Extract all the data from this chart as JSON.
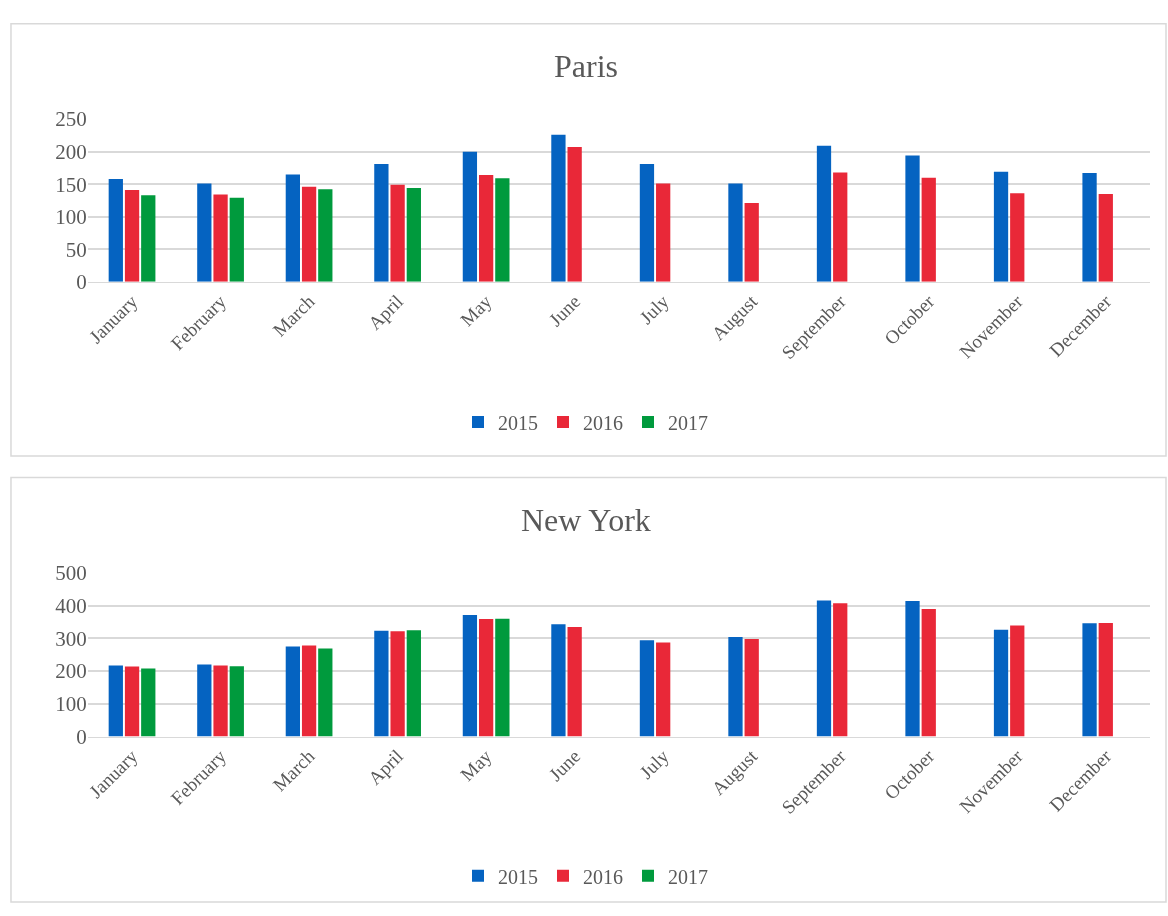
{
  "chart_data": [
    {
      "type": "bar",
      "title": "Paris",
      "categories": [
        "January",
        "February",
        "March",
        "April",
        "May",
        "June",
        "July",
        "August",
        "September",
        "October",
        "November",
        "December"
      ],
      "ylim": [
        0,
        250
      ],
      "yticks": [
        0,
        50,
        100,
        150,
        200,
        250
      ],
      "grid": "y",
      "legend": "bottom",
      "series": [
        {
          "name": "2015",
          "color": "#0563c1",
          "values": [
            158,
            151,
            165,
            181,
            200,
            226,
            181,
            151,
            209,
            194,
            169,
            167
          ]
        },
        {
          "name": "2016",
          "color": "#e92838",
          "values": [
            141,
            134,
            146,
            149,
            164,
            207,
            151,
            121,
            168,
            160,
            136,
            135
          ]
        },
        {
          "name": "2017",
          "color": "#009a3d",
          "values": [
            133,
            129,
            142,
            144,
            159,
            null,
            null,
            null,
            null,
            null,
            null,
            null
          ]
        }
      ]
    },
    {
      "type": "bar",
      "title": "New York",
      "categories": [
        "January",
        "February",
        "March",
        "April",
        "May",
        "June",
        "July",
        "August",
        "September",
        "October",
        "November",
        "December"
      ],
      "ylim": [
        0,
        500
      ],
      "yticks": [
        0,
        100,
        200,
        300,
        400,
        500
      ],
      "grid": "y",
      "legend": "bottom",
      "series": [
        {
          "name": "2015",
          "color": "#0563c1",
          "values": [
            217,
            220,
            275,
            323,
            371,
            343,
            294,
            304,
            416,
            414,
            326,
            346
          ]
        },
        {
          "name": "2016",
          "color": "#e92838",
          "values": [
            214,
            217,
            278,
            322,
            359,
            335,
            287,
            298,
            407,
            390,
            339,
            347
          ]
        },
        {
          "name": "2017",
          "color": "#009a3d",
          "values": [
            208,
            215,
            269,
            325,
            360,
            null,
            null,
            null,
            null,
            null,
            null,
            null
          ]
        }
      ]
    }
  ]
}
